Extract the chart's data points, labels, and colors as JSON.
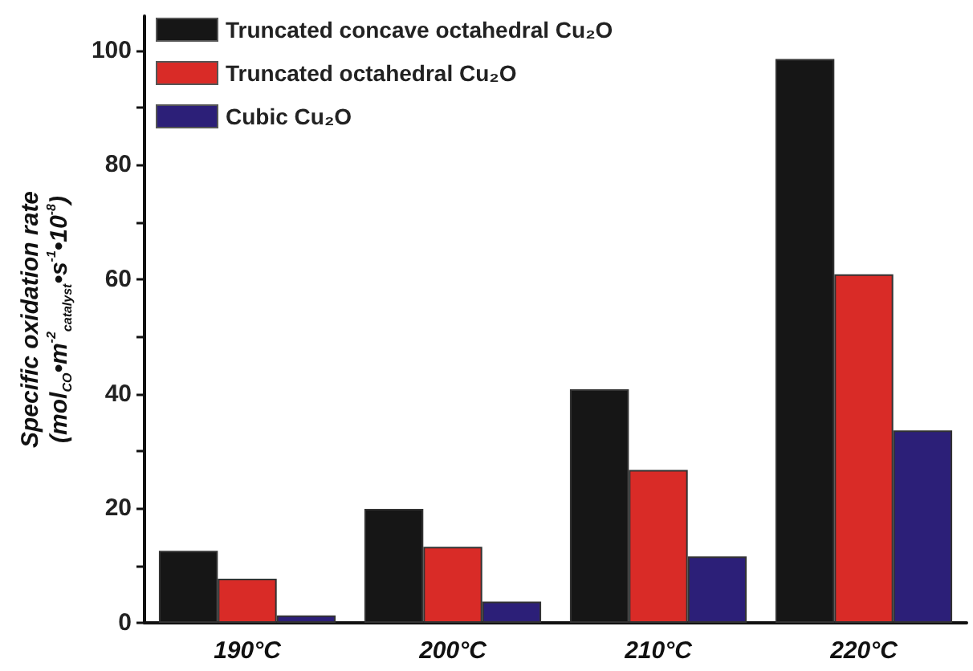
{
  "chart_data": {
    "type": "bar",
    "ylabel": "Specific oxidation rate\n(mol$_{CO}$•m$^{-2}$$_{catalyst}$•s$^{-1}$•10$^{-8}$)",
    "categories": [
      "190°C",
      "200°C",
      "210°C",
      "220°C"
    ],
    "series": [
      {
        "name": "Truncated concave octahedral Cu₂O",
        "color": "#161616",
        "values": [
          12.6,
          19.9,
          40.8,
          98.5
        ]
      },
      {
        "name": "Truncated octahedral Cu₂O",
        "color": "#d92b27",
        "values": [
          7.7,
          13.3,
          26.7,
          60.9
        ]
      },
      {
        "name": "Cubic Cu₂O",
        "color": "#2c1f78",
        "values": [
          1.3,
          3.7,
          11.6,
          33.6
        ]
      }
    ],
    "ylim": [
      0,
      106
    ],
    "yticks": [
      0,
      {
        "value": 10,
        "label": null
      },
      20,
      {
        "value": 30,
        "label": null
      },
      40,
      {
        "value": 50,
        "label": null
      },
      60,
      {
        "value": 70,
        "label": null
      },
      80,
      {
        "value": 90,
        "label": null
      },
      100
    ],
    "grid": false,
    "legend": "top left"
  }
}
